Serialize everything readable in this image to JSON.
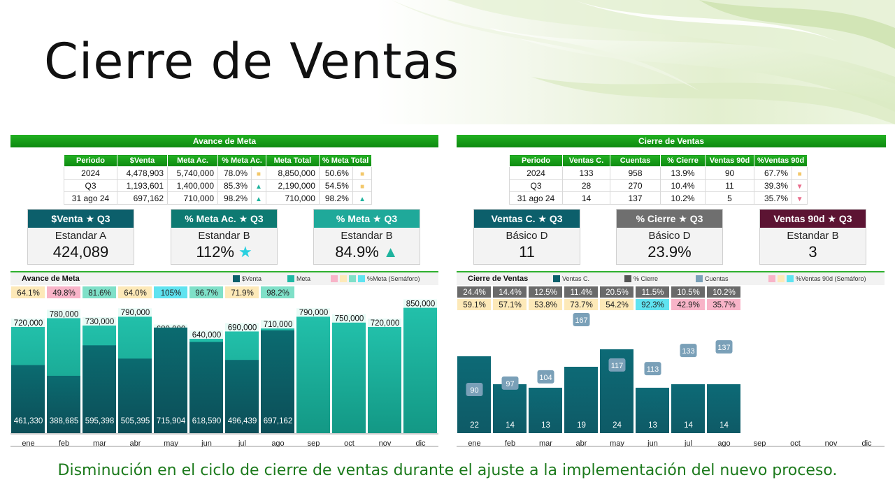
{
  "title": "Cierre de Ventas",
  "footer": "Disminución en el ciclo de cierre de ventas durante el ajuste a la implementación del nuevo proceso.",
  "colors": {
    "green_band": "#15991a",
    "teal_dark": "#0c5f6b",
    "teal_light": "#1fb8a4",
    "maroon": "#5c1433",
    "gray_card": "#707070",
    "lightblue": "#7aa0b8"
  },
  "left": {
    "band": "Avance de Meta",
    "table": {
      "headers": [
        "Periodo",
        "$Venta",
        "Meta Ac.",
        "% Meta Ac.",
        "Meta Total",
        "% Meta Total"
      ],
      "rows": [
        {
          "periodo": "2024",
          "venta": "4,478,903",
          "meta_ac": "5,740,000",
          "pct_meta_ac": "78.0%",
          "ind1": "■",
          "meta_total": "8,850,000",
          "pct_meta_total": "50.6%",
          "ind2": "■"
        },
        {
          "periodo": "Q3",
          "venta": "1,193,601",
          "meta_ac": "1,400,000",
          "pct_meta_ac": "85.3%",
          "ind1": "▲",
          "meta_total": "2,190,000",
          "pct_meta_total": "54.5%",
          "ind2": "■"
        },
        {
          "periodo": "31 ago 24",
          "venta": "697,162",
          "meta_ac": "710,000",
          "pct_meta_ac": "98.2%",
          "ind1": "▲",
          "meta_total": "710,000",
          "pct_meta_total": "98.2%",
          "ind2": "▲"
        }
      ]
    },
    "cards": [
      {
        "head": "$Venta ★ Q3",
        "sub": "Estandar A",
        "value": "424,089",
        "suffix": "",
        "color": "#0c5f6b"
      },
      {
        "head": "% Meta Ac. ★ Q3",
        "sub": "Estandar B",
        "value": "112%",
        "suffix": "★",
        "color": "#0e7a72"
      },
      {
        "head": "% Meta ★ Q3",
        "sub": "Estandar B",
        "value": "84.9%",
        "suffix": "▲",
        "color": "#1fa99a"
      }
    ],
    "chart_title": "Avance de Meta",
    "legend": [
      "$Venta",
      "Meta",
      "%Meta (Semáforo)"
    ]
  },
  "right": {
    "band": "Cierre de Ventas",
    "table": {
      "headers": [
        "Periodo",
        "Ventas C.",
        "Cuentas",
        "% Cierre",
        "Ventas 90d",
        "%Ventas 90d"
      ],
      "rows": [
        {
          "periodo": "2024",
          "ventas_c": "133",
          "cuentas": "958",
          "pct_cierre": "13.9%",
          "ventas_90d": "90",
          "pct_90d": "67.7%",
          "ind": "■"
        },
        {
          "periodo": "Q3",
          "ventas_c": "28",
          "cuentas": "270",
          "pct_cierre": "10.4%",
          "ventas_90d": "11",
          "pct_90d": "39.3%",
          "ind": "▼"
        },
        {
          "periodo": "31 ago 24",
          "ventas_c": "14",
          "cuentas": "137",
          "pct_cierre": "10.2%",
          "ventas_90d": "5",
          "pct_90d": "35.7%",
          "ind": "▼"
        }
      ]
    },
    "cards": [
      {
        "head": "Ventas C. ★ Q3",
        "sub": "Básico D",
        "value": "11",
        "suffix": "",
        "color": "#0c5f6b"
      },
      {
        "head": "% Cierre ★ Q3",
        "sub": "Básico D",
        "value": "23.9%",
        "suffix": "",
        "color": "#6f6f6f"
      },
      {
        "head": "Ventas 90d ★ Q3",
        "sub": "Estandar B",
        "value": "3",
        "suffix": "",
        "color": "#5c1433"
      }
    ],
    "chart_title": "Cierre de Ventas",
    "legend": [
      "Ventas C.",
      "% Cierre",
      "Cuentas",
      "%Ventas 90d (Semáforo)"
    ]
  },
  "chart_data": [
    {
      "type": "bar",
      "title": "Avance de Meta",
      "categories": [
        "ene",
        "feb",
        "mar",
        "abr",
        "may",
        "jun",
        "jul",
        "ago",
        "sep",
        "oct",
        "nov",
        "dic"
      ],
      "series": [
        {
          "name": "$Venta",
          "values": [
            461330,
            388685,
            595398,
            505395,
            715904,
            618590,
            496439,
            697162,
            null,
            null,
            null,
            null
          ]
        },
        {
          "name": "Meta",
          "values": [
            720000,
            780000,
            730000,
            790000,
            680000,
            640000,
            690000,
            710000,
            790000,
            750000,
            720000,
            850000
          ]
        }
      ],
      "labels": {
        "venta": [
          "461,330",
          "388,685",
          "595,398",
          "505,395",
          "715,904",
          "618,590",
          "496,439",
          "697,162",
          "",
          "",
          "",
          ""
        ],
        "meta": [
          "720,000",
          "780,000",
          "730,000",
          "790,000",
          "680,000",
          "640,000",
          "690,000",
          "710,000",
          "790,000",
          "750,000",
          "720,000",
          "850,000"
        ],
        "pct_meta": [
          "64.1%",
          "49.8%",
          "81.6%",
          "64.0%",
          "105%",
          "96.7%",
          "71.9%",
          "98.2%"
        ],
        "pct_colors": [
          "#fde9b8",
          "#f8b4c8",
          "#7fe0c8",
          "#fde9b8",
          "#5fe3f0",
          "#7fe0c8",
          "#fde9b8",
          "#7fe0c8"
        ]
      },
      "ylim": [
        0,
        900000
      ]
    },
    {
      "type": "bar",
      "title": "Cierre de Ventas",
      "categories": [
        "ene",
        "feb",
        "mar",
        "abr",
        "may",
        "jun",
        "jul",
        "ago",
        "sep",
        "oct",
        "nov",
        "dic"
      ],
      "series": [
        {
          "name": "Ventas C.",
          "values": [
            22,
            14,
            13,
            19,
            24,
            13,
            14,
            14,
            null,
            null,
            null,
            null
          ]
        },
        {
          "name": "Cuentas",
          "values": [
            90,
            97,
            104,
            167,
            117,
            113,
            133,
            137,
            null,
            null,
            null,
            null
          ]
        }
      ],
      "labels": {
        "pct_cierre": [
          "24.4%",
          "14.4%",
          "12.5%",
          "11.4%",
          "20.5%",
          "11.5%",
          "10.5%",
          "10.2%"
        ],
        "pct_90d": [
          "59.1%",
          "57.1%",
          "53.8%",
          "73.7%",
          "54.2%",
          "92.3%",
          "42.9%",
          "35.7%"
        ],
        "pct_90d_colors": [
          "#fde9b8",
          "#fde9b8",
          "#fde9b8",
          "#fde9b8",
          "#fde9b8",
          "#5fe3f0",
          "#f8b4c8",
          "#f8b4c8"
        ]
      },
      "ylim": [
        0,
        30
      ]
    }
  ]
}
